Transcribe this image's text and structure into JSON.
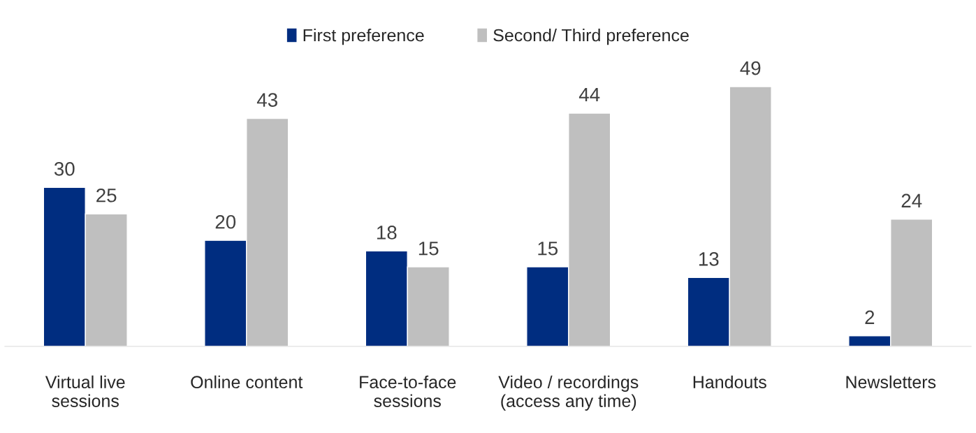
{
  "chart_data": {
    "type": "bar",
    "categories": [
      "Virtual live sessions",
      "Online content",
      "Face-to-face sessions",
      "Video / recordings (access any time)",
      "Handouts",
      "Newsletters"
    ],
    "series": [
      {
        "name": "First preference",
        "color": "#002d80",
        "values": [
          30,
          20,
          18,
          15,
          13,
          2
        ]
      },
      {
        "name": "Second/ Third preference",
        "color": "#bfbfbf",
        "values": [
          25,
          43,
          15,
          44,
          49,
          24
        ]
      }
    ],
    "data_labels": true,
    "legend": "top"
  }
}
